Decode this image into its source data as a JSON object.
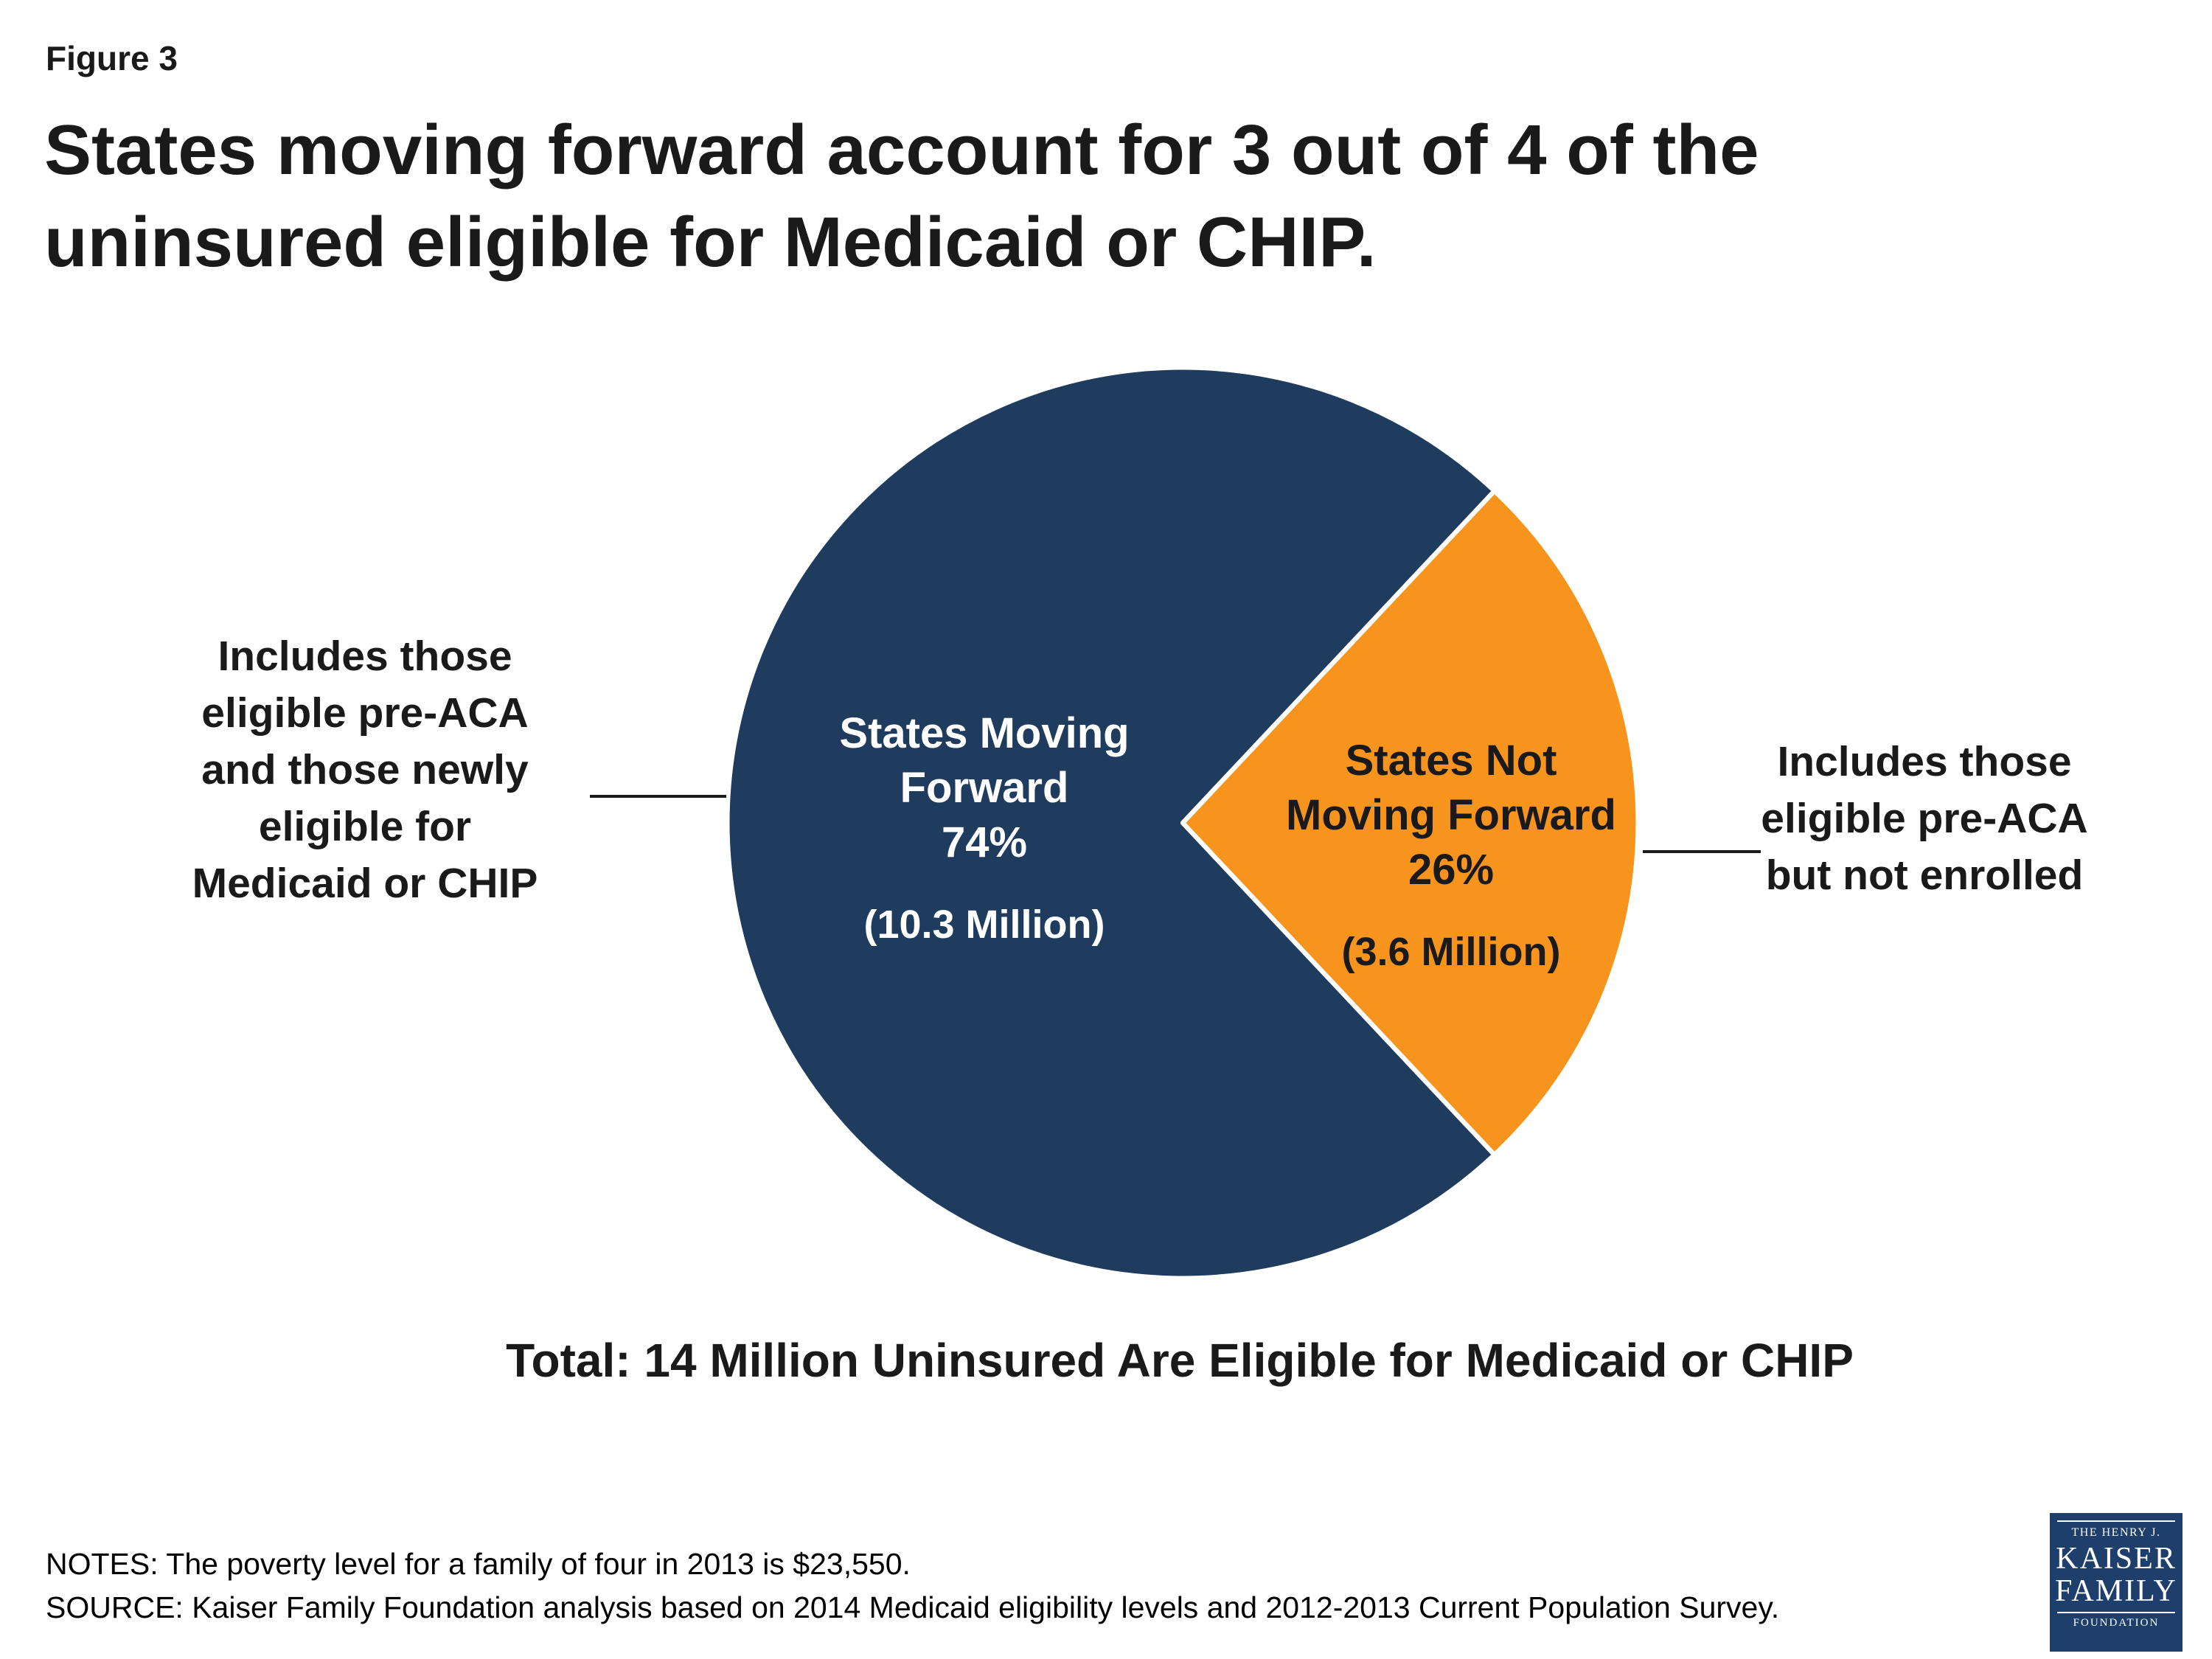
{
  "figure_label": "Figure 3",
  "title_line1": "States moving forward account for 3 out of 4 of the",
  "title_line2": "uninsured eligible for Medicaid or CHIP.",
  "chart_data": {
    "type": "pie",
    "total_label": "Total: 14 Million Uninsured Are Eligible for Medicaid or CHIP",
    "slices": [
      {
        "label": "States Moving Forward",
        "pct": 74,
        "value_label": "74%",
        "detail": "(10.3 Million)",
        "color": "#1f3b5e"
      },
      {
        "label": "States Not Moving Forward",
        "pct": 26,
        "value_label": "26%",
        "detail": "(3.6 Million)",
        "color": "#f7941e"
      }
    ],
    "legend_position": "none",
    "separator_color": "#ffffff"
  },
  "annotations": {
    "left": "Includes those eligible pre-ACA and those newly eligible for Medicaid or CHIP",
    "right": "Includes those eligible pre-ACA but not enrolled"
  },
  "footnotes": {
    "notes": "NOTES: The poverty level for a family of four in 2013 is $23,550.",
    "source": "SOURCE: Kaiser Family Foundation analysis based on 2014 Medicaid eligibility levels and 2012-2013 Current Population Survey."
  },
  "logo": {
    "line1": "THE HENRY J.",
    "line2": "KAISER",
    "line3": "FAMILY",
    "line4": "FOUNDATION"
  }
}
